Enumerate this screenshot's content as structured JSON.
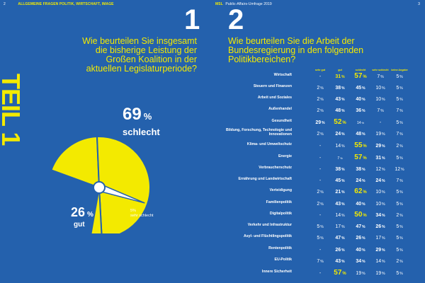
{
  "header": {
    "left_page": "2",
    "section": "ALLGEMEINE FRAGEN POLITIK, WIRTSCHAFT, IMAGE",
    "brand": "MSL",
    "subtitle": "Public-Affairs-Umfrage 2019",
    "right_page": "3"
  },
  "teil": "TEIL 1",
  "q1": {
    "number": "1",
    "lines": [
      "Wie beurteilen Sie insgesamt",
      "die bisherige Leistung der",
      "Großen Koalition in der",
      "aktuellen Legislaturperiode?"
    ],
    "schlecht_value": "69",
    "schlecht_pct": "%",
    "schlecht_label": "schlecht",
    "gut_value": "26",
    "gut_pct": "%",
    "gut_label": "gut",
    "sehr_schlecht_value": "5%",
    "sehr_schlecht_label": "sehr schlecht",
    "gauge_shares": {
      "gut": 0.26,
      "schlecht": 0.69,
      "sehr_schlecht": 0.05
    },
    "colors": {
      "yellow": "#f3ea00",
      "blue": "#2461ad"
    }
  },
  "q2": {
    "number": "2",
    "lines": [
      "Wie beurteilen Sie die Arbeit der",
      "Bundesregierung in den folgenden",
      "Politikbereichen?"
    ],
    "columns": [
      "sehr gut",
      "gut",
      "schlecht",
      "sehr schlecht",
      "keine Angabe"
    ],
    "rows": [
      {
        "name": "Wirtschaft",
        "vals": [
          "-",
          "31",
          "57",
          "7",
          "5"
        ],
        "styles": [
          "",
          "yb",
          "hi",
          "",
          ""
        ]
      },
      {
        "name": "Steuern und Finanzen",
        "vals": [
          "2",
          "38",
          "45",
          "10",
          "5"
        ],
        "styles": [
          "",
          "md",
          "md",
          "",
          ""
        ]
      },
      {
        "name": "Arbeit und Soziales",
        "vals": [
          "2",
          "43",
          "40",
          "10",
          "5"
        ],
        "styles": [
          "",
          "md",
          "md",
          "",
          ""
        ]
      },
      {
        "name": "Außenhandel",
        "vals": [
          "2",
          "48",
          "36",
          "7",
          "7"
        ],
        "styles": [
          "",
          "md",
          "md",
          "",
          ""
        ]
      },
      {
        "name": "Gesundheit",
        "vals": [
          "29",
          "52",
          "14",
          "-",
          "5"
        ],
        "styles": [
          "md",
          "hi",
          "sm",
          "",
          ""
        ]
      },
      {
        "name": "Bildung, Forschung, Technologie und Innovationen",
        "vals": [
          "2",
          "24",
          "48",
          "19",
          "7"
        ],
        "styles": [
          "",
          "md",
          "md",
          "",
          ""
        ]
      },
      {
        "name": "Klima- und Umweltschutz",
        "vals": [
          "-",
          "14",
          "55",
          "29",
          "2"
        ],
        "styles": [
          "",
          "",
          "hi",
          "md",
          ""
        ]
      },
      {
        "name": "Energie",
        "vals": [
          "-",
          "7",
          "57",
          "31",
          "5"
        ],
        "styles": [
          "",
          "sm",
          "hi",
          "md",
          ""
        ]
      },
      {
        "name": "Verbraucherschutz",
        "vals": [
          "-",
          "38",
          "38",
          "12",
          "12"
        ],
        "styles": [
          "",
          "md",
          "md",
          "",
          ""
        ]
      },
      {
        "name": "Ernährung und Landwirtschaft",
        "vals": [
          "-",
          "45",
          "24",
          "24",
          "7"
        ],
        "styles": [
          "",
          "md",
          "md",
          "md",
          ""
        ]
      },
      {
        "name": "Verteidigung",
        "vals": [
          "2",
          "21",
          "62",
          "10",
          "5"
        ],
        "styles": [
          "",
          "md",
          "hi",
          "",
          ""
        ]
      },
      {
        "name": "Familienpolitik",
        "vals": [
          "2",
          "43",
          "40",
          "10",
          "5"
        ],
        "styles": [
          "",
          "md",
          "md",
          "",
          ""
        ]
      },
      {
        "name": "Digitalpolitik",
        "vals": [
          "-",
          "14",
          "50",
          "34",
          "2"
        ],
        "styles": [
          "",
          "",
          "hi",
          "md",
          ""
        ]
      },
      {
        "name": "Verkehr und Infrastruktur",
        "vals": [
          "5",
          "17",
          "47",
          "26",
          "5"
        ],
        "styles": [
          "",
          "",
          "md",
          "md",
          ""
        ]
      },
      {
        "name": "Asyl- und Flüchtlingspolitik",
        "vals": [
          "5",
          "47",
          "26",
          "17",
          "5"
        ],
        "styles": [
          "",
          "md",
          "md",
          "",
          ""
        ]
      },
      {
        "name": "Rentenpolitik",
        "vals": [
          "-",
          "26",
          "40",
          "29",
          "5"
        ],
        "styles": [
          "",
          "md",
          "md",
          "md",
          ""
        ]
      },
      {
        "name": "EU-Politik",
        "vals": [
          "7",
          "43",
          "34",
          "14",
          "2"
        ],
        "styles": [
          "",
          "md",
          "md",
          "",
          ""
        ]
      },
      {
        "name": "Innere Sicherheit",
        "vals": [
          "-",
          "57",
          "19",
          "19",
          "5"
        ],
        "styles": [
          "",
          "hi",
          "",
          "",
          ""
        ]
      }
    ]
  }
}
